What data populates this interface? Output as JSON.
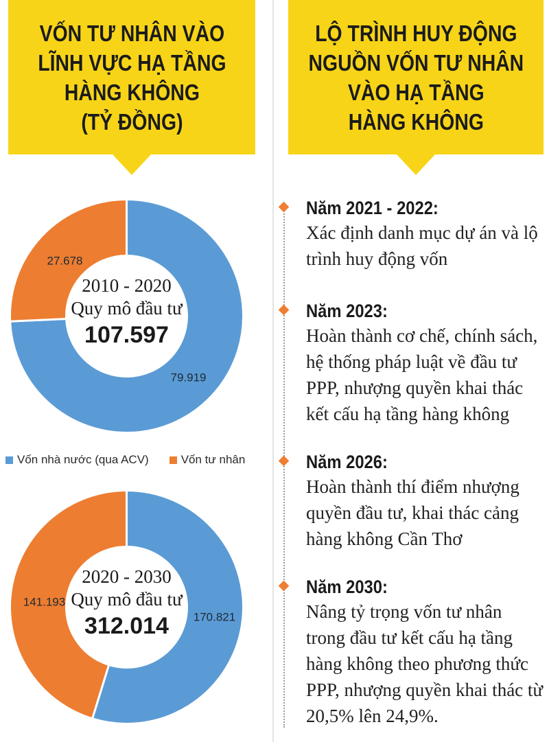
{
  "left_banner": {
    "lines": [
      "VỐN TƯ NHÂN VÀO",
      "LĨNH VỰC HẠ TẦNG",
      "HÀNG KHÔNG",
      "(TỶ ĐỒNG)"
    ]
  },
  "right_banner": {
    "lines": [
      "LỘ TRÌNH HUY ĐỘNG",
      "NGUỒN VỐN TƯ NHÂN",
      "VÀO HẠ TẦNG",
      "HÀNG KHÔNG"
    ]
  },
  "colors": {
    "banner": "#f7d417",
    "state": "#5b9bd5",
    "private": "#ed7d31",
    "diamond": "#ef7d32"
  },
  "legend": {
    "state": "Vốn nhà nước (qua ACV)",
    "private": "Vốn tư nhân"
  },
  "chart_data": [
    {
      "type": "pie",
      "period": "2010 - 2020",
      "center_label": "Quy mô đầu tư",
      "total": "107.597",
      "slices": [
        {
          "name": "Vốn nhà nước (qua ACV)",
          "value": 79.919,
          "label": "79.919"
        },
        {
          "name": "Vốn tư nhân",
          "value": 27.678,
          "label": "27.678"
        }
      ]
    },
    {
      "type": "pie",
      "period": "2020 - 2030",
      "center_label": "Quy mô đầu tư",
      "total": "312.014",
      "slices": [
        {
          "name": "Vốn nhà nước (qua ACV)",
          "value": 170.821,
          "label": "170.821"
        },
        {
          "name": "Vốn tư nhân",
          "value": 141.193,
          "label": "141.193"
        }
      ]
    }
  ],
  "timeline": [
    {
      "year": "Năm 2021 - 2022:",
      "text": "Xác định danh mục dự án và lộ\ntrình huy động vốn"
    },
    {
      "year": "Năm 2023:",
      "text": "Hoàn thành cơ chế, chính sách,\nhệ thống pháp luật về đầu tư\nPPP, nhượng quyền khai thác\nkết cấu hạ tầng hàng không"
    },
    {
      "year": "Năm 2026:",
      "text": "Hoàn thành thí điểm nhượng\nquyền đầu tư, khai thác cảng\nhàng không Cần Thơ"
    },
    {
      "year": "Năm 2030:",
      "text": "Nâng tỷ trọng vốn tư nhân\ntrong đầu tư kết cấu hạ tầng\nhàng không theo phương thức\nPPP, nhượng quyền khai thác từ\n20,5% lên 24,9%."
    }
  ]
}
